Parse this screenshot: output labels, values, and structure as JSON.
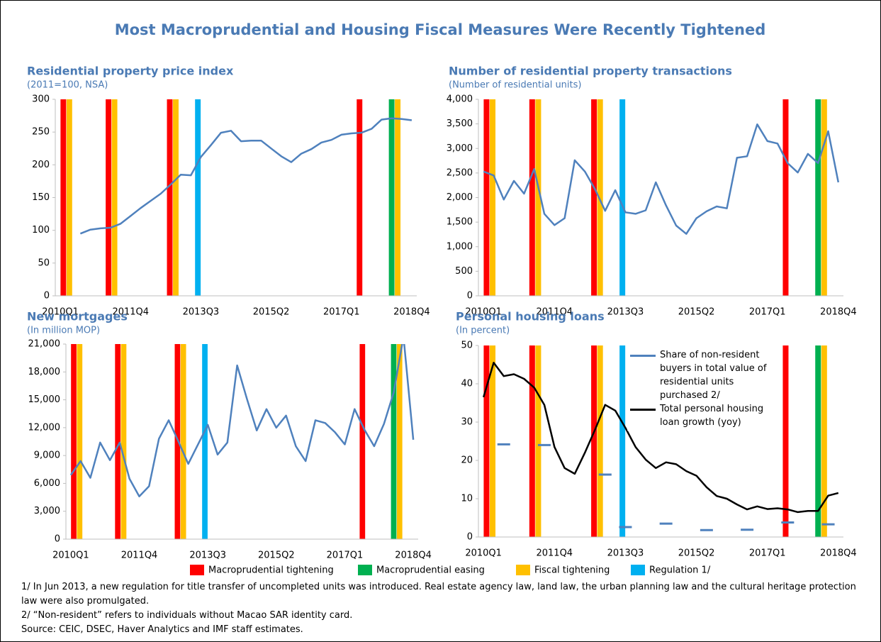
{
  "title": "Most Macroprudential and Housing Fiscal Measures Were Recently Tightened",
  "measures": [
    {
      "name": "Macroprudential tightening",
      "color": "#ff0000",
      "quarters": [
        0.3,
        4.8,
        10.9,
        29.8
      ]
    },
    {
      "name": "Macroprudential easing",
      "color": "#00b050",
      "quarters": [
        33.0
      ]
    },
    {
      "name": "Fiscal tightening",
      "color": "#ffc000",
      "quarters": [
        0.9,
        5.4,
        11.5,
        33.6
      ]
    },
    {
      "name": "Regulation 1/",
      "color": "#00b0f0",
      "quarters": [
        13.7
      ]
    }
  ],
  "notes": [
    "1/ In Jun 2013, a new regulation for title transfer of uncompleted units was introduced. Real estate agency law, land law, the urban planning law and the cultural heritage protection law were also promulgated.",
    "2/ “Non-resident” refers to individuals without Macao SAR identity card.",
    "Source: CEIC, DSEC, Haver Analytics and IMF staff estimates."
  ],
  "chart_data": [
    {
      "type": "line",
      "title": "Residential property price index",
      "subtitle": "(2011=100, NSA)",
      "categories": [
        "2010Q1",
        null,
        null,
        null,
        null,
        null,
        null,
        "2011Q4",
        null,
        null,
        null,
        null,
        null,
        null,
        "2013Q3",
        null,
        null,
        null,
        null,
        null,
        null,
        "2015Q2",
        null,
        null,
        null,
        null,
        null,
        null,
        "2017Q1",
        null,
        null,
        null,
        null,
        null,
        null,
        "2018Q4"
      ],
      "series": [
        {
          "color": "#4f81bd",
          "values": [
            null,
            null,
            95,
            101,
            103,
            104,
            110,
            122,
            134,
            145,
            156,
            170,
            185,
            184,
            212,
            230,
            249,
            252,
            236,
            237,
            237,
            225,
            213,
            204,
            217,
            224,
            234,
            238,
            246,
            248,
            249,
            255,
            269,
            271,
            270,
            268
          ]
        }
      ],
      "ylim": [
        0,
        300
      ],
      "yticks": [
        0,
        50,
        100,
        150,
        200,
        250,
        300
      ]
    },
    {
      "type": "line",
      "title": "Number of residential property transactions",
      "subtitle": "(Number of residential units)",
      "categories": [
        "2010Q1",
        null,
        null,
        null,
        null,
        null,
        null,
        "2011Q4",
        null,
        null,
        null,
        null,
        null,
        null,
        "2013Q3",
        null,
        null,
        null,
        null,
        null,
        null,
        "2015Q2",
        null,
        null,
        null,
        null,
        null,
        null,
        "2017Q1",
        null,
        null,
        null,
        null,
        null,
        null,
        "2018Q4"
      ],
      "series": [
        {
          "color": "#4f81bd",
          "values": [
            2530,
            2450,
            1960,
            2340,
            2080,
            2580,
            1670,
            1440,
            1580,
            2760,
            2530,
            2170,
            1730,
            2150,
            1700,
            1670,
            1740,
            2310,
            1840,
            1430,
            1260,
            1580,
            1720,
            1820,
            1780,
            2810,
            2840,
            3490,
            3150,
            3100,
            2700,
            2510,
            2890,
            2700,
            3350,
            2310
          ]
        }
      ],
      "ylim": [
        0,
        4000
      ],
      "yticks": [
        0,
        500,
        {
          "value": 1000,
          "label": "1,000"
        },
        {
          "value": 1500,
          "label": "1,500"
        },
        {
          "value": 2000,
          "label": "2,000"
        },
        {
          "value": 2500,
          "label": "2,500"
        },
        {
          "value": 3000,
          "label": "3,000"
        },
        {
          "value": 3500,
          "label": "3,500"
        },
        {
          "value": 4000,
          "label": "4,000"
        }
      ]
    },
    {
      "type": "line",
      "title": "New mortgages",
      "subtitle": "(In million MOP)",
      "categories": [
        "2010Q1",
        null,
        null,
        null,
        null,
        null,
        null,
        "2011Q4",
        null,
        null,
        null,
        null,
        null,
        null,
        "2013Q3",
        null,
        null,
        null,
        null,
        null,
        null,
        "2015Q2",
        null,
        null,
        null,
        null,
        null,
        null,
        "2017Q1",
        null,
        null,
        null,
        null,
        null,
        null,
        "2018Q4"
      ],
      "series": [
        {
          "color": "#4f81bd",
          "values": [
            6900,
            8400,
            6600,
            10400,
            8500,
            10400,
            6500,
            4600,
            5700,
            10800,
            12800,
            10500,
            8100,
            10200,
            12300,
            9100,
            10400,
            18700,
            15100,
            11700,
            14000,
            12000,
            13300,
            10000,
            8400,
            12800,
            12500,
            11500,
            10200,
            14000,
            11800,
            10000,
            12400,
            15800,
            21800,
            10700
          ]
        }
      ],
      "ylim": [
        0,
        21000
      ],
      "yticks": [
        0,
        {
          "value": 3000,
          "label": "3,000"
        },
        {
          "value": 6000,
          "label": "6,000"
        },
        {
          "value": 9000,
          "label": "9,000"
        },
        {
          "value": 12000,
          "label": "12,000"
        },
        {
          "value": 15000,
          "label": "15,000"
        },
        {
          "value": 18000,
          "label": "18,000"
        },
        {
          "value": 21000,
          "label": "21,000"
        }
      ]
    },
    {
      "type": "line",
      "title": "Personal housing loans",
      "subtitle": "(In percent)",
      "categories": [
        "2010Q1",
        null,
        null,
        null,
        null,
        null,
        null,
        "2011Q4",
        null,
        null,
        null,
        null,
        null,
        null,
        "2013Q3",
        null,
        null,
        null,
        null,
        null,
        null,
        "2015Q2",
        null,
        null,
        null,
        null,
        null,
        null,
        "2017Q1",
        null,
        null,
        null,
        null,
        null,
        null,
        "2018Q4"
      ],
      "series": [
        {
          "name": "Share of non-resident buyers in total value of residential units purchased 2/",
          "color": "#4f81bd",
          "marker": "dash",
          "values": [
            null,
            null,
            24.2,
            null,
            null,
            null,
            24,
            null,
            null,
            null,
            null,
            null,
            16.3,
            null,
            2.6,
            null,
            null,
            null,
            3.5,
            null,
            null,
            null,
            1.8,
            null,
            null,
            null,
            1.9,
            null,
            null,
            null,
            3.8,
            null,
            null,
            null,
            3.3,
            null
          ]
        },
        {
          "name": "Total personal housing loan growth (yoy)",
          "color": "#000000",
          "values": [
            36.5,
            45.5,
            42,
            42.5,
            41.3,
            39,
            34.5,
            23.5,
            18,
            16.5,
            22,
            28,
            34.5,
            33,
            28.5,
            23.5,
            20.2,
            18,
            19.5,
            19,
            17.2,
            16,
            13,
            10.7,
            10,
            8.5,
            7.2,
            8,
            7.3,
            7.5,
            7.2,
            6.5,
            6.8,
            6.8,
            10.8,
            11.5
          ]
        }
      ],
      "ylim": [
        0,
        50
      ],
      "yticks": [
        0,
        10,
        20,
        30,
        40,
        50
      ],
      "legend": "top-right"
    }
  ]
}
